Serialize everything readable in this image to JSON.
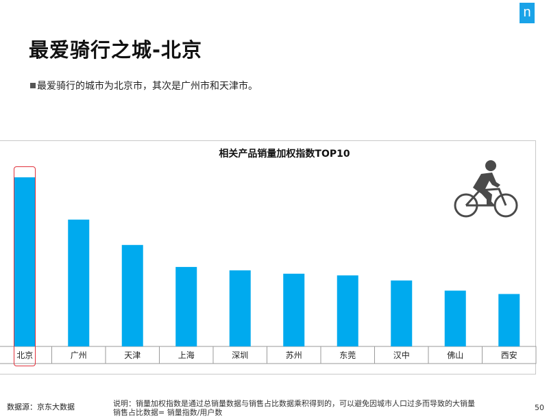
{
  "header": {
    "logo_text": "n",
    "title": "最爱骑行之城-北京",
    "bullet": "最爱骑行的城市为北京市，其次是广州市和天津市。"
  },
  "colors": {
    "bar": "#00aaee",
    "highlight": "#e0303a",
    "logo": "#1aa3e8"
  },
  "chart_data": {
    "type": "bar",
    "title": "相关产品销量加权指数TOP10",
    "categories": [
      "北京",
      "广州",
      "天津",
      "上海",
      "深圳",
      "苏州",
      "东莞",
      "汉中",
      "佛山",
      "西安"
    ],
    "values": [
      100,
      75,
      60,
      47,
      45,
      43,
      42,
      39,
      33,
      31
    ],
    "highlighted_category": "北京",
    "ylim": [
      0,
      100
    ],
    "grid": false,
    "legend": "none"
  },
  "footer": {
    "source": "数据源：京东大数据",
    "note_line1": "说明：销量加权指数是通过总销量数据与销售占比数据乘积得到的，可以避免因城市人口过多而导致的大销量",
    "note_line2": "销售占比数据= 销量指数/用户数",
    "page_number": "50"
  },
  "icons": {
    "cyclist": "cyclist-icon"
  }
}
